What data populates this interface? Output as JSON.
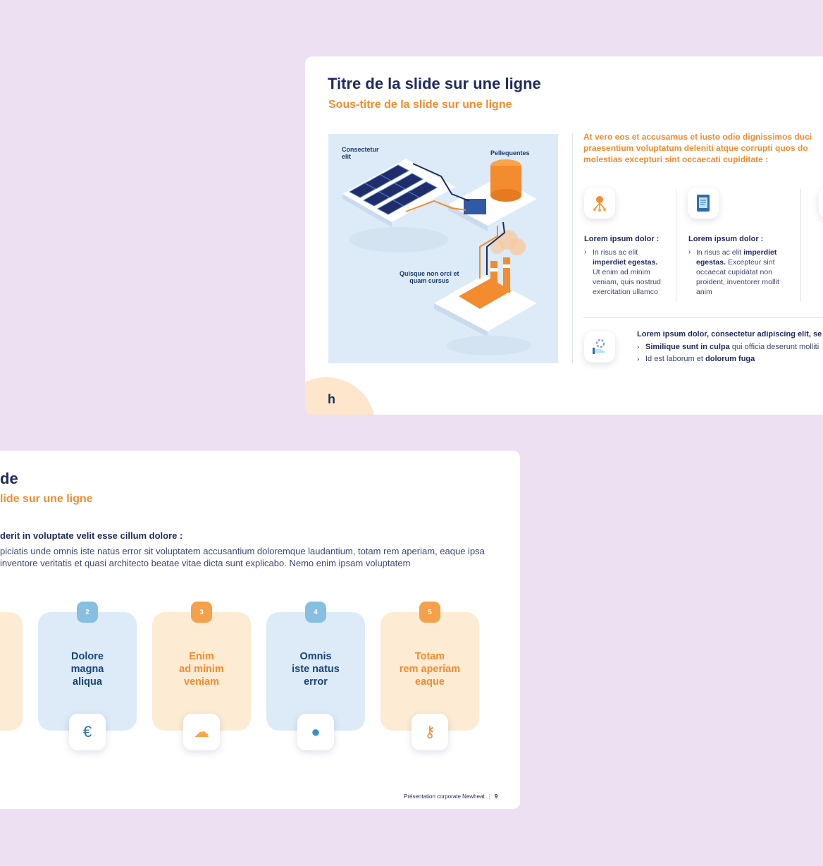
{
  "slide1": {
    "title": "Titre de la slide sur une ligne",
    "subtitle": "Sous-titre de la slide sur une ligne",
    "illustration": {
      "label_top_left": [
        "Consectetur",
        "elit"
      ],
      "label_top_right": "Pellequentes",
      "label_center": [
        "Quisque non orci et",
        "quam cursus"
      ]
    },
    "intro_lines": [
      "At vero eos et accusamus et iusto odio dignissimos duci",
      "praesentium voluptatum deleniti atque corrupti quos do",
      "molestias excepturi sint occaecati cupiditate :"
    ],
    "columns": [
      {
        "title": "Lorem ipsum dolor :",
        "icon": "network-icon",
        "line1_plain": "In risus ac elit",
        "line2_bold": "imperdiet egestas.",
        "rest_lines": [
          "Ut enim ad minim",
          "veniam, quis nostrud",
          "exercitation ullamco"
        ]
      },
      {
        "title": "Lorem ipsum dolor :",
        "icon": "document-icon",
        "line1_plain": "In risus ac elit",
        "line1_bold": "imperdiet",
        "line2_bold": "egestas.",
        "line2_plain": "Excepteur sint",
        "rest_lines": [
          "occaecat cupidatat non",
          "proident, inventorer mollit",
          "anim"
        ]
      }
    ],
    "bottom": {
      "icon": "hand-gear-icon",
      "lead": "Lorem ipsum dolor, consectetur adipiscing elit, se",
      "line1_bold": "Similique sunt in culpa",
      "line1_plain": "qui officia deserunt molliti",
      "line2_plain_a": "Id est laborum et",
      "line2_bold": "dolorum fuga"
    },
    "logo": "h"
  },
  "slide2": {
    "title_fragment": "de",
    "subtitle_fragment": "lide sur une ligne",
    "lead": "derit in voluptate velit esse cillum dolore :",
    "para_lines": [
      "piciatis unde omnis iste natus error sit voluptatem accusantium doloremque laudantium, totam rem aperiam, eaque ipsa",
      "inventore veritatis et quasi architecto beatae vitae dicta sunt explicabo. Nemo enim ipsam voluptatem"
    ],
    "cards": [
      {
        "number": "2",
        "lines": [
          "Dolore",
          "magna",
          "aliqua"
        ],
        "icon": "euro-receipt-icon",
        "glyph": "€"
      },
      {
        "number": "3",
        "lines": [
          "Enim",
          "ad minim",
          "veniam"
        ],
        "icon": "cloud-crossed-icon",
        "glyph": "☁"
      },
      {
        "number": "4",
        "lines": [
          "Omnis",
          "iste natus",
          "error"
        ],
        "icon": "cycle-circle-icon",
        "glyph": "●"
      },
      {
        "number": "5",
        "lines": [
          "Totam",
          "rem aperiam",
          "eaque"
        ],
        "icon": "hand-key-icon",
        "glyph": "⚷"
      }
    ],
    "footer_text": "Présentation corporate Newheat",
    "footer_sep": "|",
    "footer_page": "9"
  },
  "colors": {
    "background": "#eee0f3",
    "navy": "#1e2a5e",
    "orange": "#f28c2e",
    "light_blue": "#dcebf7",
    "light_orange": "#fdebd3"
  }
}
